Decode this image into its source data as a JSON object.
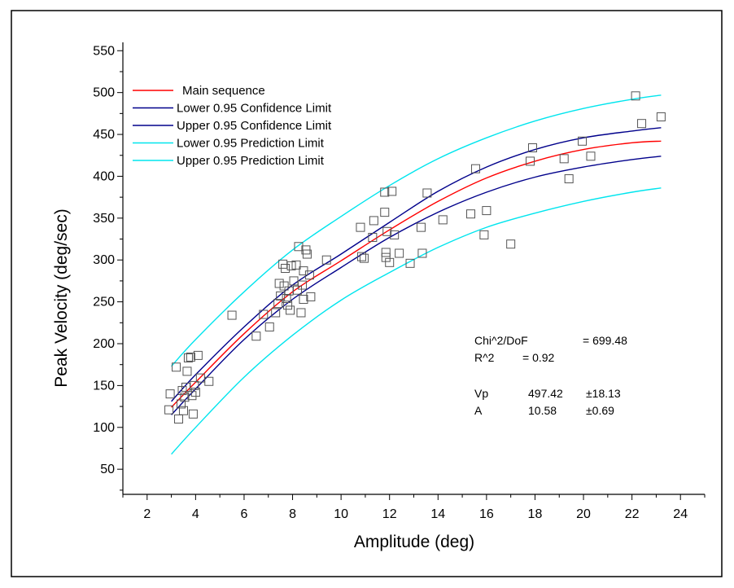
{
  "chart_data": {
    "type": "scatter",
    "title": "",
    "xlabel": "Amplitude (deg)",
    "ylabel": "Peak Velocity (deg/sec)",
    "xlim": [
      1,
      25
    ],
    "ylim": [
      20,
      560
    ],
    "x_ticks": [
      2,
      4,
      6,
      8,
      10,
      12,
      14,
      16,
      18,
      20,
      22,
      24
    ],
    "y_ticks": [
      50,
      100,
      150,
      200,
      250,
      300,
      350,
      400,
      450,
      500,
      550
    ],
    "grid": false,
    "legend_position": "top-left",
    "legend": [
      {
        "label": "Main sequence",
        "color": "#ff0000"
      },
      {
        "label": "Lower 0.95 Confidence Limit",
        "color": "#00008b"
      },
      {
        "label": "Upper 0.95 Confidence Limit",
        "color": "#00008b"
      },
      {
        "label": "Lower 0.95 Prediction Limit",
        "color": "#00e5ee"
      },
      {
        "label": "Upper 0.95 Prediction Limit",
        "color": "#00e5ee"
      }
    ],
    "series": [
      {
        "name": "Main sequence",
        "color": "#ff0000",
        "x": [
          3,
          4,
          6,
          8,
          10,
          12,
          14,
          16,
          18,
          20,
          22,
          23.2
        ],
        "y": [
          124,
          154,
          212,
          262,
          299,
          336,
          370,
          398,
          418,
          432,
          440,
          442
        ]
      },
      {
        "name": "Lower 0.95 Confidence Limit",
        "color": "#00008b",
        "x": [
          3,
          4,
          6,
          8,
          10,
          12,
          14,
          16,
          18,
          20,
          22,
          23.2
        ],
        "y": [
          115,
          146,
          205,
          253,
          291,
          327,
          357,
          381,
          399,
          411,
          420,
          424
        ]
      },
      {
        "name": "Upper 0.95 Confidence Limit",
        "color": "#00008b",
        "x": [
          3,
          4,
          6,
          8,
          10,
          12,
          14,
          16,
          18,
          20,
          22,
          23.2
        ],
        "y": [
          131,
          163,
          220,
          270,
          307,
          345,
          382,
          411,
          432,
          446,
          454,
          458
        ]
      },
      {
        "name": "Lower 0.95 Prediction Limit",
        "color": "#00e5ee",
        "x": [
          3,
          4,
          6,
          8,
          10,
          12,
          14,
          16,
          18,
          20,
          22,
          23.2
        ],
        "y": [
          68,
          100,
          160,
          210,
          252,
          285,
          315,
          339,
          356,
          370,
          381,
          386
        ]
      },
      {
        "name": "Upper 0.95 Prediction Limit",
        "color": "#00e5ee",
        "x": [
          3,
          4,
          6,
          8,
          10,
          12,
          14,
          16,
          18,
          20,
          22,
          23.2
        ],
        "y": [
          173,
          205,
          262,
          312,
          352,
          389,
          421,
          446,
          466,
          481,
          492,
          497
        ]
      }
    ],
    "points": [
      {
        "x": 2.9,
        "y": 121
      },
      {
        "x": 2.95,
        "y": 140
      },
      {
        "x": 3.2,
        "y": 172
      },
      {
        "x": 3.3,
        "y": 110
      },
      {
        "x": 3.4,
        "y": 128
      },
      {
        "x": 3.45,
        "y": 144
      },
      {
        "x": 3.5,
        "y": 120
      },
      {
        "x": 3.55,
        "y": 136
      },
      {
        "x": 3.6,
        "y": 148
      },
      {
        "x": 3.65,
        "y": 167
      },
      {
        "x": 3.7,
        "y": 183
      },
      {
        "x": 3.8,
        "y": 184
      },
      {
        "x": 3.85,
        "y": 138
      },
      {
        "x": 3.9,
        "y": 116
      },
      {
        "x": 3.95,
        "y": 150
      },
      {
        "x": 4.0,
        "y": 142
      },
      {
        "x": 4.1,
        "y": 186
      },
      {
        "x": 4.2,
        "y": 159
      },
      {
        "x": 4.55,
        "y": 155
      },
      {
        "x": 5.5,
        "y": 234
      },
      {
        "x": 6.5,
        "y": 209
      },
      {
        "x": 6.8,
        "y": 235
      },
      {
        "x": 7.05,
        "y": 220
      },
      {
        "x": 7.3,
        "y": 237
      },
      {
        "x": 7.4,
        "y": 248
      },
      {
        "x": 7.45,
        "y": 272
      },
      {
        "x": 7.5,
        "y": 257
      },
      {
        "x": 7.6,
        "y": 295
      },
      {
        "x": 7.65,
        "y": 269
      },
      {
        "x": 7.7,
        "y": 290
      },
      {
        "x": 7.75,
        "y": 254
      },
      {
        "x": 7.8,
        "y": 246
      },
      {
        "x": 7.85,
        "y": 263
      },
      {
        "x": 7.9,
        "y": 240
      },
      {
        "x": 7.95,
        "y": 293
      },
      {
        "x": 8.05,
        "y": 275
      },
      {
        "x": 8.15,
        "y": 294
      },
      {
        "x": 8.2,
        "y": 264
      },
      {
        "x": 8.25,
        "y": 316
      },
      {
        "x": 8.35,
        "y": 237
      },
      {
        "x": 8.4,
        "y": 270
      },
      {
        "x": 8.45,
        "y": 287
      },
      {
        "x": 8.45,
        "y": 253
      },
      {
        "x": 8.55,
        "y": 312
      },
      {
        "x": 8.6,
        "y": 307
      },
      {
        "x": 8.7,
        "y": 282
      },
      {
        "x": 8.75,
        "y": 256
      },
      {
        "x": 9.4,
        "y": 300
      },
      {
        "x": 10.8,
        "y": 339
      },
      {
        "x": 10.85,
        "y": 304
      },
      {
        "x": 10.95,
        "y": 302
      },
      {
        "x": 11.3,
        "y": 327
      },
      {
        "x": 11.35,
        "y": 347
      },
      {
        "x": 11.8,
        "y": 381
      },
      {
        "x": 11.8,
        "y": 357
      },
      {
        "x": 11.85,
        "y": 309
      },
      {
        "x": 11.85,
        "y": 303
      },
      {
        "x": 11.9,
        "y": 334
      },
      {
        "x": 12.0,
        "y": 297
      },
      {
        "x": 12.1,
        "y": 382
      },
      {
        "x": 12.2,
        "y": 330
      },
      {
        "x": 12.4,
        "y": 308
      },
      {
        "x": 12.85,
        "y": 296
      },
      {
        "x": 13.3,
        "y": 339
      },
      {
        "x": 13.35,
        "y": 308
      },
      {
        "x": 13.55,
        "y": 380
      },
      {
        "x": 14.2,
        "y": 348
      },
      {
        "x": 15.35,
        "y": 355
      },
      {
        "x": 15.55,
        "y": 409
      },
      {
        "x": 15.9,
        "y": 330
      },
      {
        "x": 16.0,
        "y": 359
      },
      {
        "x": 17.0,
        "y": 319
      },
      {
        "x": 17.8,
        "y": 418
      },
      {
        "x": 17.9,
        "y": 434
      },
      {
        "x": 19.2,
        "y": 421
      },
      {
        "x": 19.4,
        "y": 397
      },
      {
        "x": 19.95,
        "y": 442
      },
      {
        "x": 20.3,
        "y": 424
      },
      {
        "x": 22.15,
        "y": 496
      },
      {
        "x": 22.4,
        "y": 463
      },
      {
        "x": 23.2,
        "y": 471
      }
    ],
    "annotations": {
      "chi_label": "Chi^2/DoF",
      "chi_value": "= 699.48",
      "r2_label": "R^2",
      "r2_value": "=  0.92",
      "vp_label": "Vp",
      "vp_value": "497.42",
      "vp_error": "±18.13",
      "a_label": "A",
      "a_value": "10.58",
      "a_error": "±0.69"
    }
  }
}
